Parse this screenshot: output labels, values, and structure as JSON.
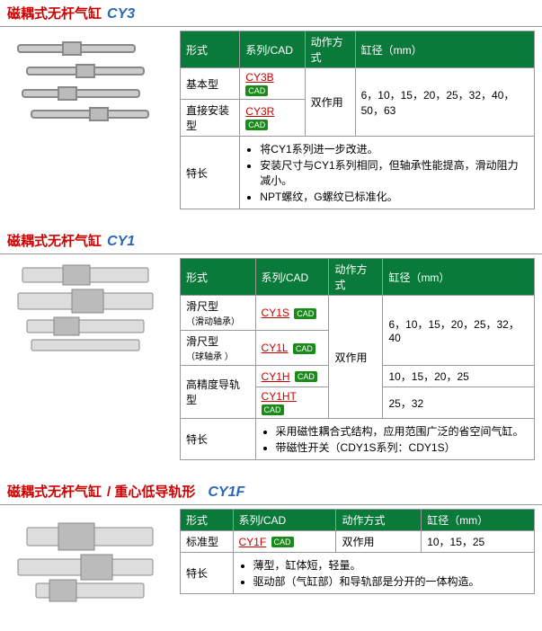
{
  "colors": {
    "header": "#0a7a3a",
    "title": "#c00",
    "series": "#2968b4",
    "link": "#c00",
    "cad": "#1a8a1a"
  },
  "columns": {
    "type": "形式",
    "series": "系列/CAD",
    "action": "动作方式",
    "bore": "缸径（mm）"
  },
  "cad_label": "CAD",
  "features_label": "特长",
  "sections": [
    {
      "title_main": "磁耦式无杆气缸",
      "title_sub": "",
      "series": "CY3",
      "rows": [
        {
          "type": "基本型",
          "links": [
            "CY3B"
          ]
        },
        {
          "type": "直接安装型",
          "links": [
            "CY3R"
          ]
        }
      ],
      "action": "双作用",
      "bore": "6，10，15，20，25，32，40，50，63",
      "features": [
        "将CY1系列进一步改进。",
        "安装尺寸与CY1系列相同，但轴承性能提高，滑动阻力减小。",
        "NPT螺纹，G螺纹已标准化。"
      ]
    },
    {
      "title_main": "磁耦式无杆气缸",
      "title_sub": "",
      "series": "CY1",
      "rows": [
        {
          "type": "滑尺型",
          "type2": "（滑动轴承）",
          "links": [
            "CY1S"
          ],
          "bore": "6，10，15，20，25，32，40"
        },
        {
          "type": "滑尺型",
          "type2": "（球轴承 ）",
          "links": [
            "CY1L"
          ],
          "bore": ""
        },
        {
          "type": "高精度导轨型",
          "links": [
            "CY1H"
          ],
          "bore": "10，15，20，25"
        },
        {
          "type": "",
          "links": [
            "CY1HT"
          ],
          "bore": "25，32"
        }
      ],
      "action": "双作用",
      "features": [
        "采用磁性耦合式结构，应用范围广泛的省空间气缸。",
        "带磁性开关（CDY1S系列：CDY1S）"
      ]
    },
    {
      "title_main": "磁耦式无杆气缸",
      "title_sub": " / 重心低导轨形",
      "series": "CY1F",
      "rows": [
        {
          "type": "标准型",
          "links": [
            "CY1F"
          ]
        }
      ],
      "action": "双作用",
      "bore": "10，15，25",
      "features": [
        "薄型，缸体短，轻量。",
        "驱动部（气缸部）和导轨部是分开的一体构造。"
      ]
    }
  ]
}
